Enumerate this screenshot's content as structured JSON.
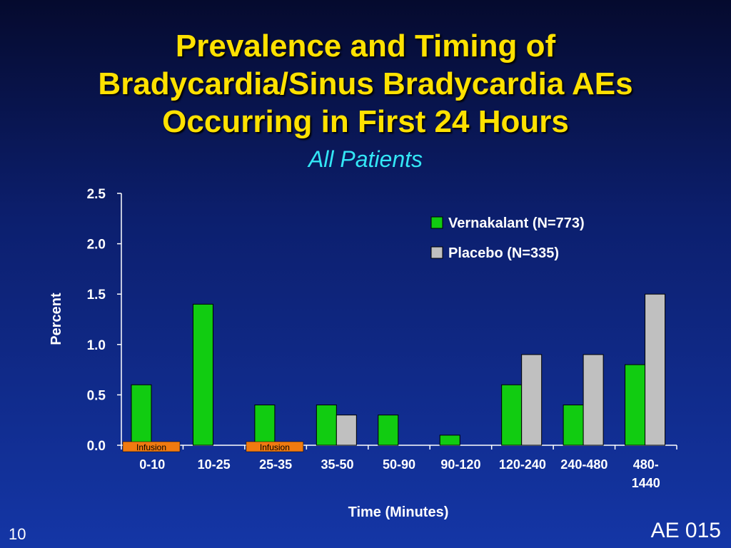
{
  "slide": {
    "title_lines": [
      "Prevalence and Timing of",
      "Bradycardia/Sinus Bradycardia AEs",
      "Occurring in First 24 Hours"
    ],
    "subtitle": "All Patients",
    "page_number": "10",
    "code": "AE 015"
  },
  "colors": {
    "title": "#ffe100",
    "subtitle": "#33e6f5",
    "vernakalant": "#11cc11",
    "placebo": "#c0c0c0",
    "infusion": "#f07a10"
  },
  "chart_data": {
    "type": "bar",
    "categories": [
      "0-10",
      "10-25",
      "25-35",
      "35-50",
      "50-90",
      "90-120",
      "120-240",
      "240-480",
      "480-1440"
    ],
    "category_labels": [
      [
        "0-10"
      ],
      [
        "10-25"
      ],
      [
        "25-35"
      ],
      [
        "35-50"
      ],
      [
        "50-90"
      ],
      [
        "90-120"
      ],
      [
        "120-240"
      ],
      [
        "240-480"
      ],
      [
        "480-",
        "1440"
      ]
    ],
    "series": [
      {
        "name": "Vernakalant (N=773)",
        "color": "#11cc11",
        "values": [
          0.6,
          1.4,
          0.4,
          0.4,
          0.3,
          0.1,
          0.6,
          0.4,
          0.8
        ]
      },
      {
        "name": "Placebo (N=335)",
        "color": "#c0c0c0",
        "values": [
          0,
          0,
          0,
          0.3,
          0,
          0,
          0.9,
          0.9,
          1.5
        ]
      }
    ],
    "xlabel": "Time (Minutes)",
    "ylabel": "Percent",
    "ylim": [
      0,
      2.5
    ],
    "yticks": [
      "0.0",
      "0.5",
      "1.0",
      "1.5",
      "2.0",
      "2.5"
    ],
    "grid": false,
    "legend_position": "top-right",
    "annotations": [
      {
        "category": "0-10",
        "text": "Infusion"
      },
      {
        "category": "25-35",
        "text": "Infusion"
      }
    ]
  }
}
